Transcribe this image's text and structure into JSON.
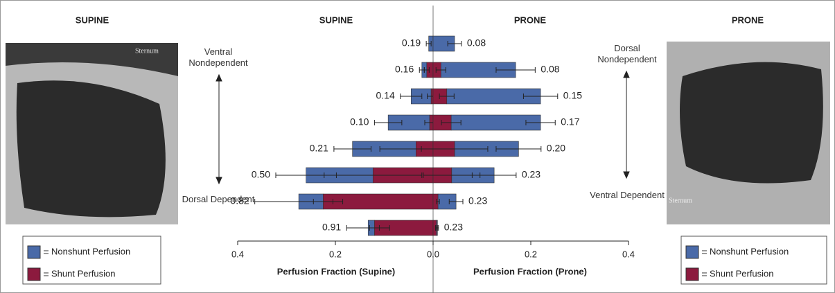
{
  "chart_data": {
    "type": "butterfly-bar",
    "title_left": "SUPINE",
    "title_right": "PRONE",
    "xlabel_left": "Perfusion Fraction (Supine)",
    "xlabel_right": "Perfusion Fraction (Prone)",
    "xlim": [
      0,
      0.4
    ],
    "xticks": [
      {
        "value": 0,
        "label": "0.0"
      },
      0.2,
      0.4
    ],
    "series": [
      {
        "name": "Nonshunt Perfusion",
        "color": "#4a6aa8",
        "left": [
          0.009,
          0.01,
          0.041,
          0.085,
          0.13,
          0.137,
          0.05,
          0.013
        ],
        "left_error": [
          0.005,
          0.005,
          0.022,
          0.028,
          0.038,
          0.062,
          0.09,
          0.044
        ],
        "right": [
          0.044,
          0.153,
          0.192,
          0.183,
          0.131,
          0.087,
          0.037,
          0.002
        ],
        "right_error": [
          0.014,
          0.04,
          0.035,
          0.03,
          0.046,
          0.045,
          0.014,
          0.002
        ]
      },
      {
        "name": "Shunt Perfusion",
        "color": "#8c1a3e",
        "left": [
          0,
          0.013,
          0.004,
          0.007,
          0.035,
          0.123,
          0.225,
          0.12
        ],
        "left_error": [
          0,
          0.005,
          0.008,
          0.01,
          0.074,
          0.1,
          0.02,
          0.01
        ],
        "right": [
          0,
          0.016,
          0.028,
          0.037,
          0.044,
          0.038,
          0.01,
          0.007
        ],
        "right_error": [
          0,
          0.01,
          0.015,
          0.02,
          0.068,
          0.058,
          0.003,
          0.002
        ]
      }
    ],
    "left_labels": [
      "0.19",
      "0.16",
      "0.14",
      "0.10",
      "0.21",
      "0.50",
      "0.82",
      "0.91"
    ],
    "right_labels": [
      "0.08",
      "0.08",
      "0.15",
      "0.17",
      "0.20",
      "0.23",
      "0.23",
      "0.23"
    ],
    "annotations": [
      {
        "text": "Ventral Nondependent"
      },
      {
        "text": "Dorsal Dependent"
      },
      {
        "text": "Dorsal Nondependent"
      },
      {
        "text": "Ventral Dependent"
      }
    ],
    "images": [
      {
        "title": "SUPINE",
        "label": "Sternum"
      },
      {
        "title": "PRONE",
        "label": "Sternum"
      }
    ]
  }
}
